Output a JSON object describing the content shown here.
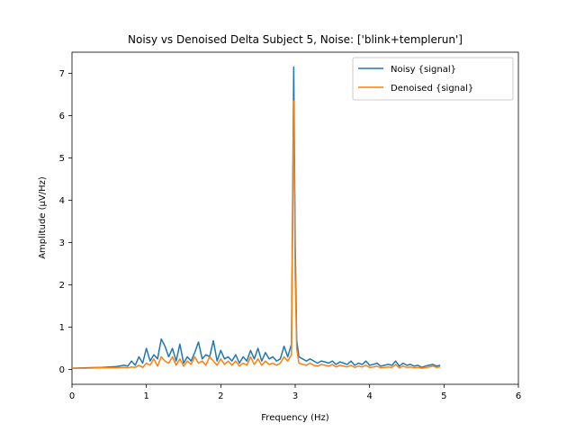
{
  "chart_data": {
    "type": "line",
    "title": "Noisy vs Denoised Delta Subject 5, Noise: ['blink+templerun']",
    "xlabel": "Frequency (Hz)",
    "ylabel": "Amplitude (μV/Hz)",
    "xlim": [
      0,
      6
    ],
    "ylim": [
      -0.35,
      7.5
    ],
    "xticks": [
      0,
      1,
      2,
      3,
      4,
      5,
      6
    ],
    "yticks": [
      0,
      1,
      2,
      3,
      4,
      5,
      6,
      7
    ],
    "xtick_labels": [
      "0",
      "1",
      "2",
      "3",
      "4",
      "5",
      "6"
    ],
    "ytick_labels": [
      "0",
      "1",
      "2",
      "3",
      "4",
      "5",
      "6",
      "7"
    ],
    "grid": false,
    "legend_position": "upper-right",
    "series": [
      {
        "name": "Noisy {signal}",
        "color": "#1f77b4",
        "x": [
          0,
          0.2,
          0.4,
          0.6,
          0.7,
          0.75,
          0.8,
          0.85,
          0.9,
          0.95,
          1.0,
          1.05,
          1.1,
          1.15,
          1.2,
          1.25,
          1.3,
          1.35,
          1.4,
          1.45,
          1.5,
          1.55,
          1.6,
          1.65,
          1.7,
          1.75,
          1.8,
          1.85,
          1.9,
          1.95,
          2.0,
          2.05,
          2.1,
          2.15,
          2.2,
          2.25,
          2.3,
          2.35,
          2.4,
          2.45,
          2.5,
          2.55,
          2.6,
          2.65,
          2.7,
          2.75,
          2.8,
          2.85,
          2.9,
          2.95,
          2.98,
          3.0,
          3.02,
          3.05,
          3.1,
          3.15,
          3.2,
          3.25,
          3.3,
          3.35,
          3.4,
          3.45,
          3.5,
          3.55,
          3.6,
          3.65,
          3.7,
          3.75,
          3.8,
          3.85,
          3.9,
          3.95,
          4.0,
          4.05,
          4.1,
          4.15,
          4.2,
          4.25,
          4.3,
          4.35,
          4.4,
          4.45,
          4.5,
          4.55,
          4.6,
          4.65,
          4.7,
          4.75,
          4.8,
          4.85,
          4.9,
          4.95
        ],
        "y": [
          0.03,
          0.04,
          0.05,
          0.07,
          0.1,
          0.08,
          0.2,
          0.1,
          0.3,
          0.15,
          0.5,
          0.2,
          0.35,
          0.25,
          0.72,
          0.55,
          0.3,
          0.5,
          0.2,
          0.6,
          0.15,
          0.3,
          0.2,
          0.4,
          0.65,
          0.25,
          0.35,
          0.3,
          0.68,
          0.2,
          0.45,
          0.25,
          0.3,
          0.2,
          0.35,
          0.15,
          0.3,
          0.2,
          0.45,
          0.25,
          0.5,
          0.2,
          0.4,
          0.25,
          0.3,
          0.2,
          0.25,
          0.55,
          0.3,
          0.6,
          7.15,
          3.0,
          0.7,
          0.3,
          0.25,
          0.2,
          0.25,
          0.2,
          0.15,
          0.2,
          0.18,
          0.15,
          0.2,
          0.12,
          0.18,
          0.15,
          0.12,
          0.2,
          0.1,
          0.15,
          0.12,
          0.2,
          0.1,
          0.12,
          0.15,
          0.08,
          0.1,
          0.12,
          0.1,
          0.2,
          0.08,
          0.15,
          0.1,
          0.12,
          0.08,
          0.1,
          0.05,
          0.08,
          0.1,
          0.12,
          0.08,
          0.1
        ]
      },
      {
        "name": "Denoised {signal}",
        "color": "#ff7f0e",
        "x": [
          0,
          0.2,
          0.4,
          0.6,
          0.7,
          0.75,
          0.8,
          0.85,
          0.9,
          0.95,
          1.0,
          1.05,
          1.1,
          1.15,
          1.2,
          1.25,
          1.3,
          1.35,
          1.4,
          1.45,
          1.5,
          1.55,
          1.6,
          1.65,
          1.7,
          1.75,
          1.8,
          1.85,
          1.9,
          1.95,
          2.0,
          2.05,
          2.1,
          2.15,
          2.2,
          2.25,
          2.3,
          2.35,
          2.4,
          2.45,
          2.5,
          2.55,
          2.6,
          2.65,
          2.7,
          2.75,
          2.8,
          2.85,
          2.9,
          2.95,
          2.98,
          3.0,
          3.02,
          3.05,
          3.1,
          3.15,
          3.2,
          3.25,
          3.3,
          3.35,
          3.4,
          3.45,
          3.5,
          3.55,
          3.6,
          3.65,
          3.7,
          3.75,
          3.8,
          3.85,
          3.9,
          3.95,
          4.0,
          4.05,
          4.1,
          4.15,
          4.2,
          4.25,
          4.3,
          4.35,
          4.4,
          4.45,
          4.5,
          4.55,
          4.6,
          4.65,
          4.7,
          4.75,
          4.8,
          4.85,
          4.9,
          4.95
        ],
        "y": [
          0.03,
          0.03,
          0.04,
          0.04,
          0.05,
          0.04,
          0.06,
          0.05,
          0.1,
          0.05,
          0.15,
          0.1,
          0.25,
          0.08,
          0.3,
          0.2,
          0.15,
          0.3,
          0.1,
          0.25,
          0.08,
          0.2,
          0.12,
          0.3,
          0.15,
          0.2,
          0.1,
          0.3,
          0.2,
          0.1,
          0.25,
          0.12,
          0.2,
          0.1,
          0.2,
          0.08,
          0.15,
          0.1,
          0.3,
          0.12,
          0.25,
          0.1,
          0.2,
          0.12,
          0.15,
          0.1,
          0.15,
          0.3,
          0.2,
          0.35,
          6.35,
          2.2,
          0.5,
          0.15,
          0.12,
          0.1,
          0.15,
          0.1,
          0.08,
          0.12,
          0.1,
          0.08,
          0.12,
          0.06,
          0.1,
          0.08,
          0.06,
          0.1,
          0.05,
          0.08,
          0.06,
          0.1,
          0.05,
          0.06,
          0.08,
          0.04,
          0.05,
          0.06,
          0.05,
          0.12,
          0.04,
          0.08,
          0.05,
          0.06,
          0.04,
          0.05,
          0.03,
          0.04,
          0.06,
          0.08,
          0.05,
          0.06
        ]
      }
    ]
  }
}
